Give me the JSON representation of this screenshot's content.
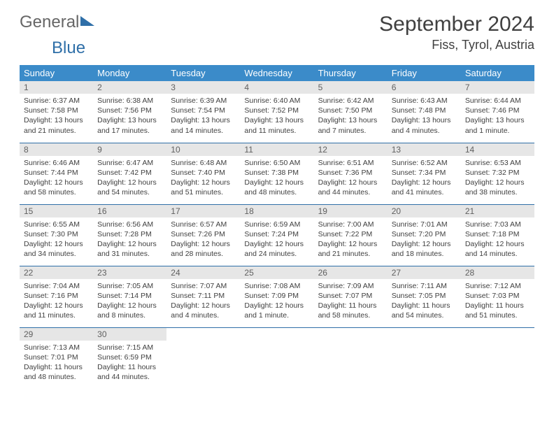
{
  "brand": {
    "part1": "General",
    "part2": "Blue"
  },
  "title": "September 2024",
  "location": "Fiss, Tyrol, Austria",
  "theme": {
    "header_bg": "#3b8bc9",
    "header_text": "#ffffff",
    "daynum_bg": "#e6e6e6",
    "border_color": "#2f6fa8",
    "body_text": "#404040",
    "brand_gray": "#666666",
    "brand_blue": "#2f6fa8"
  },
  "weekdays": [
    "Sunday",
    "Monday",
    "Tuesday",
    "Wednesday",
    "Thursday",
    "Friday",
    "Saturday"
  ],
  "days": [
    {
      "n": "1",
      "sr": "Sunrise: 6:37 AM",
      "ss": "Sunset: 7:58 PM",
      "dl1": "Daylight: 13 hours",
      "dl2": "and 21 minutes."
    },
    {
      "n": "2",
      "sr": "Sunrise: 6:38 AM",
      "ss": "Sunset: 7:56 PM",
      "dl1": "Daylight: 13 hours",
      "dl2": "and 17 minutes."
    },
    {
      "n": "3",
      "sr": "Sunrise: 6:39 AM",
      "ss": "Sunset: 7:54 PM",
      "dl1": "Daylight: 13 hours",
      "dl2": "and 14 minutes."
    },
    {
      "n": "4",
      "sr": "Sunrise: 6:40 AM",
      "ss": "Sunset: 7:52 PM",
      "dl1": "Daylight: 13 hours",
      "dl2": "and 11 minutes."
    },
    {
      "n": "5",
      "sr": "Sunrise: 6:42 AM",
      "ss": "Sunset: 7:50 PM",
      "dl1": "Daylight: 13 hours",
      "dl2": "and 7 minutes."
    },
    {
      "n": "6",
      "sr": "Sunrise: 6:43 AM",
      "ss": "Sunset: 7:48 PM",
      "dl1": "Daylight: 13 hours",
      "dl2": "and 4 minutes."
    },
    {
      "n": "7",
      "sr": "Sunrise: 6:44 AM",
      "ss": "Sunset: 7:46 PM",
      "dl1": "Daylight: 13 hours",
      "dl2": "and 1 minute."
    },
    {
      "n": "8",
      "sr": "Sunrise: 6:46 AM",
      "ss": "Sunset: 7:44 PM",
      "dl1": "Daylight: 12 hours",
      "dl2": "and 58 minutes."
    },
    {
      "n": "9",
      "sr": "Sunrise: 6:47 AM",
      "ss": "Sunset: 7:42 PM",
      "dl1": "Daylight: 12 hours",
      "dl2": "and 54 minutes."
    },
    {
      "n": "10",
      "sr": "Sunrise: 6:48 AM",
      "ss": "Sunset: 7:40 PM",
      "dl1": "Daylight: 12 hours",
      "dl2": "and 51 minutes."
    },
    {
      "n": "11",
      "sr": "Sunrise: 6:50 AM",
      "ss": "Sunset: 7:38 PM",
      "dl1": "Daylight: 12 hours",
      "dl2": "and 48 minutes."
    },
    {
      "n": "12",
      "sr": "Sunrise: 6:51 AM",
      "ss": "Sunset: 7:36 PM",
      "dl1": "Daylight: 12 hours",
      "dl2": "and 44 minutes."
    },
    {
      "n": "13",
      "sr": "Sunrise: 6:52 AM",
      "ss": "Sunset: 7:34 PM",
      "dl1": "Daylight: 12 hours",
      "dl2": "and 41 minutes."
    },
    {
      "n": "14",
      "sr": "Sunrise: 6:53 AM",
      "ss": "Sunset: 7:32 PM",
      "dl1": "Daylight: 12 hours",
      "dl2": "and 38 minutes."
    },
    {
      "n": "15",
      "sr": "Sunrise: 6:55 AM",
      "ss": "Sunset: 7:30 PM",
      "dl1": "Daylight: 12 hours",
      "dl2": "and 34 minutes."
    },
    {
      "n": "16",
      "sr": "Sunrise: 6:56 AM",
      "ss": "Sunset: 7:28 PM",
      "dl1": "Daylight: 12 hours",
      "dl2": "and 31 minutes."
    },
    {
      "n": "17",
      "sr": "Sunrise: 6:57 AM",
      "ss": "Sunset: 7:26 PM",
      "dl1": "Daylight: 12 hours",
      "dl2": "and 28 minutes."
    },
    {
      "n": "18",
      "sr": "Sunrise: 6:59 AM",
      "ss": "Sunset: 7:24 PM",
      "dl1": "Daylight: 12 hours",
      "dl2": "and 24 minutes."
    },
    {
      "n": "19",
      "sr": "Sunrise: 7:00 AM",
      "ss": "Sunset: 7:22 PM",
      "dl1": "Daylight: 12 hours",
      "dl2": "and 21 minutes."
    },
    {
      "n": "20",
      "sr": "Sunrise: 7:01 AM",
      "ss": "Sunset: 7:20 PM",
      "dl1": "Daylight: 12 hours",
      "dl2": "and 18 minutes."
    },
    {
      "n": "21",
      "sr": "Sunrise: 7:03 AM",
      "ss": "Sunset: 7:18 PM",
      "dl1": "Daylight: 12 hours",
      "dl2": "and 14 minutes."
    },
    {
      "n": "22",
      "sr": "Sunrise: 7:04 AM",
      "ss": "Sunset: 7:16 PM",
      "dl1": "Daylight: 12 hours",
      "dl2": "and 11 minutes."
    },
    {
      "n": "23",
      "sr": "Sunrise: 7:05 AM",
      "ss": "Sunset: 7:14 PM",
      "dl1": "Daylight: 12 hours",
      "dl2": "and 8 minutes."
    },
    {
      "n": "24",
      "sr": "Sunrise: 7:07 AM",
      "ss": "Sunset: 7:11 PM",
      "dl1": "Daylight: 12 hours",
      "dl2": "and 4 minutes."
    },
    {
      "n": "25",
      "sr": "Sunrise: 7:08 AM",
      "ss": "Sunset: 7:09 PM",
      "dl1": "Daylight: 12 hours",
      "dl2": "and 1 minute."
    },
    {
      "n": "26",
      "sr": "Sunrise: 7:09 AM",
      "ss": "Sunset: 7:07 PM",
      "dl1": "Daylight: 11 hours",
      "dl2": "and 58 minutes."
    },
    {
      "n": "27",
      "sr": "Sunrise: 7:11 AM",
      "ss": "Sunset: 7:05 PM",
      "dl1": "Daylight: 11 hours",
      "dl2": "and 54 minutes."
    },
    {
      "n": "28",
      "sr": "Sunrise: 7:12 AM",
      "ss": "Sunset: 7:03 PM",
      "dl1": "Daylight: 11 hours",
      "dl2": "and 51 minutes."
    },
    {
      "n": "29",
      "sr": "Sunrise: 7:13 AM",
      "ss": "Sunset: 7:01 PM",
      "dl1": "Daylight: 11 hours",
      "dl2": "and 48 minutes."
    },
    {
      "n": "30",
      "sr": "Sunrise: 7:15 AM",
      "ss": "Sunset: 6:59 PM",
      "dl1": "Daylight: 11 hours",
      "dl2": "and 44 minutes."
    }
  ]
}
